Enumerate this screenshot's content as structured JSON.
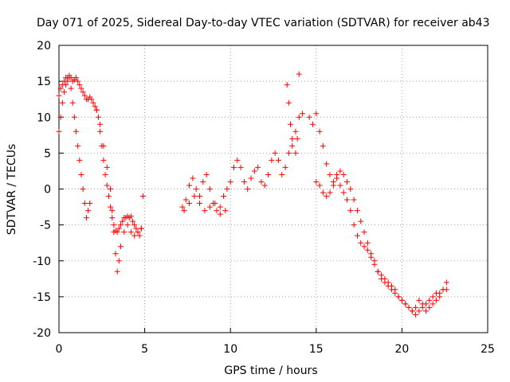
{
  "chart_data": {
    "type": "scatter",
    "title": "Day 071 of 2025, Sidereal Day-to-day VTEC variation (SDTVAR) for receiver ab43",
    "xlabel": "GPS time / hours",
    "ylabel": "SDTVAR / TECUs",
    "xlim": [
      0,
      25
    ],
    "ylim": [
      -20,
      20
    ],
    "xticks": [
      "0",
      "5",
      "10",
      "15",
      "20",
      "25"
    ],
    "yticks": [
      "-20",
      "-15",
      "-10",
      "-5",
      "0",
      "5",
      "10",
      "15",
      "20"
    ],
    "grid": true,
    "marker": "+",
    "color": "#ff0000",
    "series": [
      {
        "name": "SDTVAR",
        "x": [
          0.0,
          0.1,
          0.2,
          0.3,
          0.4,
          0.5,
          0.6,
          0.7,
          0.8,
          0.9,
          1.0,
          1.1,
          1.2,
          1.3,
          1.4,
          1.5,
          1.6,
          1.7,
          1.8,
          1.9,
          2.0,
          2.1,
          2.2,
          2.3,
          2.4,
          2.5,
          2.6,
          2.7,
          2.8,
          2.9,
          3.0,
          3.1,
          3.2,
          3.3,
          3.4,
          3.5,
          3.6,
          3.7,
          3.8,
          3.9,
          4.0,
          4.1,
          4.2,
          4.3,
          4.4,
          4.5,
          4.6,
          4.7,
          4.8,
          4.9,
          0.0,
          0.1,
          0.2,
          0.3,
          0.4,
          0.5,
          0.6,
          0.7,
          0.8,
          0.9,
          1.0,
          1.1,
          1.2,
          1.3,
          1.4,
          1.5,
          1.6,
          1.7,
          1.8,
          2.2,
          2.4,
          2.6,
          2.8,
          3.0,
          3.1,
          3.2,
          3.3,
          3.4,
          3.5,
          3.6,
          3.8,
          4.0,
          4.2,
          4.4,
          4.6,
          4.8,
          7.2,
          7.4,
          7.6,
          7.8,
          8.0,
          8.2,
          8.4,
          8.6,
          8.8,
          9.0,
          9.2,
          9.4,
          9.6,
          9.8,
          10.0,
          10.2,
          10.4,
          10.6,
          10.8,
          11.0,
          11.2,
          11.4,
          11.6,
          11.8,
          12.0,
          12.2,
          12.4,
          12.6,
          12.8,
          13.0,
          13.2,
          13.4,
          13.6,
          13.8,
          14.0,
          14.2,
          7.3,
          7.6,
          7.9,
          8.2,
          8.5,
          8.8,
          9.1,
          9.4,
          9.7,
          13.3,
          13.4,
          13.5,
          13.6,
          13.8,
          13.9,
          14.0,
          14.6,
          14.8,
          15.0,
          15.2,
          15.4,
          15.6,
          15.8,
          16.0,
          16.2,
          16.4,
          16.6,
          16.8,
          17.0,
          17.2,
          17.4,
          17.6,
          17.8,
          18.0,
          18.2,
          18.4,
          18.6,
          18.8,
          19.0,
          19.2,
          19.4,
          19.6,
          19.8,
          20.0,
          20.2,
          20.4,
          20.6,
          20.8,
          21.0,
          21.2,
          21.4,
          21.6,
          21.8,
          22.0,
          22.2,
          22.4,
          22.6,
          15.0,
          15.2,
          15.4,
          15.6,
          15.8,
          16.0,
          16.2,
          16.4,
          16.6,
          16.8,
          17.0,
          17.2,
          17.4,
          17.6,
          17.8,
          18.0,
          18.2,
          18.4,
          18.6,
          18.8,
          19.0,
          19.2,
          19.4,
          19.6,
          19.8,
          20.0,
          20.2,
          20.4,
          20.6,
          20.8,
          21.0,
          21.2,
          21.4,
          21.6,
          21.8,
          22.0,
          22.2,
          22.4,
          22.6
        ],
        "y": [
          13.0,
          14.0,
          14.5,
          15.0,
          15.5,
          15.5,
          15.8,
          15.5,
          15.0,
          15.2,
          15.5,
          15.0,
          14.5,
          14.0,
          13.5,
          13.0,
          12.5,
          12.5,
          12.8,
          12.5,
          12.0,
          11.5,
          11.0,
          10.0,
          8.0,
          6.0,
          4.0,
          2.0,
          0.5,
          -1.0,
          -2.5,
          -4.0,
          -5.0,
          -5.8,
          -6.0,
          -5.5,
          -5.0,
          -4.5,
          -4.0,
          -4.0,
          -3.8,
          -4.0,
          -3.8,
          -4.5,
          -5.0,
          -5.5,
          -6.0,
          -6.5,
          -5.5,
          -1.0,
          8.0,
          10.0,
          12.0,
          13.5,
          14.5,
          15.0,
          15.5,
          14.0,
          12.0,
          10.0,
          8.0,
          6.0,
          4.0,
          2.0,
          0.0,
          -2.0,
          -4.0,
          -3.0,
          -2.0,
          11.0,
          9.0,
          6.0,
          3.0,
          0.0,
          -3.0,
          -6.0,
          -9.0,
          -11.5,
          -10.0,
          -8.0,
          -6.0,
          -5.0,
          -6.0,
          -6.5,
          -6.0,
          -5.5,
          -2.5,
          -1.5,
          0.5,
          1.5,
          0.0,
          -1.0,
          1.0,
          2.0,
          0.0,
          -2.0,
          -3.0,
          -2.5,
          -1.0,
          0.0,
          1.0,
          3.0,
          4.0,
          3.0,
          1.0,
          0.0,
          1.5,
          2.5,
          3.0,
          1.0,
          0.5,
          2.0,
          4.0,
          5.0,
          4.0,
          2.0,
          3.0,
          5.0,
          6.0,
          8.0,
          10.0,
          10.5,
          -3.0,
          -2.0,
          -1.0,
          -2.0,
          -3.0,
          -2.5,
          -2.0,
          -3.5,
          -3.0,
          14.5,
          12.0,
          9.0,
          7.0,
          5.0,
          7.0,
          16.0,
          10.0,
          9.0,
          10.5,
          8.0,
          6.0,
          3.5,
          2.0,
          1.0,
          2.0,
          0.5,
          -0.5,
          -1.5,
          -3.0,
          -5.0,
          -6.5,
          -7.5,
          -8.0,
          -8.5,
          -9.5,
          -10.5,
          -11.5,
          -12.0,
          -12.5,
          -13.0,
          -13.5,
          -14.0,
          -15.0,
          -15.5,
          -16.0,
          -16.5,
          -17.0,
          -16.5,
          -15.5,
          -16.0,
          -17.0,
          -16.5,
          -16.0,
          -15.5,
          -15.0,
          -14.0,
          -13.0,
          1.0,
          0.5,
          -0.5,
          -1.0,
          -0.5,
          0.5,
          1.5,
          2.5,
          2.0,
          1.0,
          0.0,
          -1.5,
          -3.0,
          -4.5,
          -6.0,
          -7.5,
          -9.0,
          -10.0,
          -11.5,
          -12.5,
          -13.0,
          -13.5,
          -14.0,
          -14.5,
          -15.0,
          -15.5,
          -16.0,
          -16.5,
          -17.0,
          -17.5,
          -17.0,
          -16.5,
          -16.0,
          -15.5,
          -15.0,
          -14.5,
          -14.5,
          -14.0,
          -14.0
        ]
      }
    ]
  }
}
